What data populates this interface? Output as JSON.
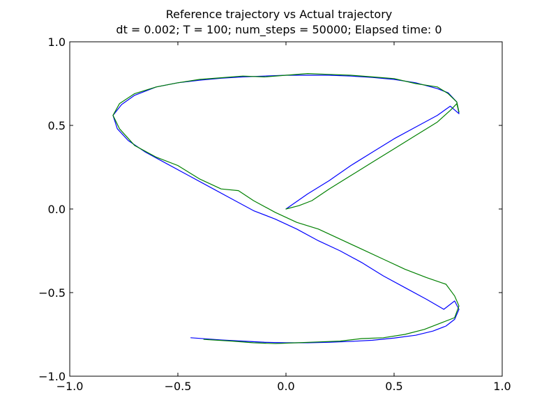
{
  "chart_data": {
    "type": "line",
    "title": "Reference trajectory vs Actual trajectory",
    "subtitle": "dt = 0.002; T = 100; num_steps = 50000; Elapsed time: 0",
    "xlabel": "",
    "ylabel": "",
    "xlim": [
      -1.0,
      1.0
    ],
    "ylim": [
      -1.0,
      1.0
    ],
    "x_ticks": [
      -1.0,
      -0.5,
      0.0,
      0.5,
      1.0
    ],
    "y_ticks": [
      -1.0,
      -0.5,
      0.0,
      0.5,
      1.0
    ],
    "x_tick_labels": [
      "−1.0",
      "−0.5",
      "0.0",
      "0.5",
      "1.0"
    ],
    "y_tick_labels": [
      "−1.0",
      "−0.5",
      "0.0",
      "0.5",
      "1.0"
    ],
    "grid": false,
    "series": [
      {
        "color": "#0000ff",
        "x": [
          0.0,
          0.1,
          0.2,
          0.3,
          0.4,
          0.5,
          0.6,
          0.7,
          0.76,
          0.8,
          0.79,
          0.75,
          0.7,
          0.6,
          0.5,
          0.4,
          0.3,
          0.2,
          0.1,
          0.0,
          -0.1,
          -0.2,
          -0.3,
          -0.4,
          -0.5,
          -0.6,
          -0.7,
          -0.76,
          -0.8,
          -0.78,
          -0.73,
          -0.65,
          -0.55,
          -0.45,
          -0.35,
          -0.25,
          -0.15,
          -0.05,
          0.05,
          0.15,
          0.25,
          0.35,
          0.45,
          0.55,
          0.65,
          0.73,
          0.78,
          0.8,
          0.78,
          0.74,
          0.68,
          0.6,
          0.5,
          0.4,
          0.3,
          0.2,
          0.1,
          0.0,
          -0.1,
          -0.2,
          -0.3,
          -0.44
        ],
        "y": [
          0.0,
          0.09,
          0.17,
          0.26,
          0.34,
          0.42,
          0.49,
          0.56,
          0.615,
          0.57,
          0.64,
          0.695,
          0.72,
          0.755,
          0.775,
          0.787,
          0.795,
          0.8,
          0.8,
          0.8,
          0.795,
          0.79,
          0.782,
          0.77,
          0.755,
          0.73,
          0.68,
          0.625,
          0.56,
          0.48,
          0.41,
          0.34,
          0.27,
          0.2,
          0.13,
          0.06,
          -0.01,
          -0.06,
          -0.12,
          -0.19,
          -0.25,
          -0.32,
          -0.4,
          -0.47,
          -0.54,
          -0.6,
          -0.55,
          -0.6,
          -0.66,
          -0.7,
          -0.73,
          -0.755,
          -0.772,
          -0.785,
          -0.792,
          -0.797,
          -0.8,
          -0.8,
          -0.797,
          -0.79,
          -0.783,
          -0.77
        ]
      },
      {
        "color": "#008000",
        "x": [
          0.0,
          0.06,
          0.12,
          0.2,
          0.3,
          0.4,
          0.5,
          0.6,
          0.7,
          0.76,
          0.79,
          0.8,
          0.79,
          0.75,
          0.7,
          0.6,
          0.5,
          0.4,
          0.3,
          0.2,
          0.1,
          0.0,
          -0.1,
          -0.2,
          -0.3,
          -0.4,
          -0.5,
          -0.6,
          -0.7,
          -0.77,
          -0.8,
          -0.77,
          -0.7,
          -0.6,
          -0.5,
          -0.4,
          -0.3,
          -0.22,
          -0.15,
          -0.05,
          0.05,
          0.15,
          0.25,
          0.35,
          0.45,
          0.55,
          0.65,
          0.74,
          0.78,
          0.8,
          0.78,
          0.72,
          0.64,
          0.55,
          0.45,
          0.35,
          0.25,
          0.15,
          0.05,
          -0.05,
          -0.15,
          -0.25,
          -0.38
        ],
        "y": [
          0.0,
          0.02,
          0.05,
          0.12,
          0.2,
          0.28,
          0.36,
          0.44,
          0.52,
          0.59,
          0.63,
          0.58,
          0.64,
          0.69,
          0.73,
          0.75,
          0.78,
          0.79,
          0.8,
          0.805,
          0.81,
          0.8,
          0.79,
          0.795,
          0.785,
          0.775,
          0.755,
          0.73,
          0.69,
          0.63,
          0.56,
          0.48,
          0.38,
          0.31,
          0.26,
          0.18,
          0.12,
          0.11,
          0.05,
          -0.02,
          -0.08,
          -0.12,
          -0.18,
          -0.24,
          -0.3,
          -0.36,
          -0.41,
          -0.45,
          -0.52,
          -0.58,
          -0.65,
          -0.68,
          -0.72,
          -0.75,
          -0.77,
          -0.775,
          -0.79,
          -0.795,
          -0.8,
          -0.805,
          -0.8,
          -0.79,
          -0.78
        ]
      }
    ]
  }
}
